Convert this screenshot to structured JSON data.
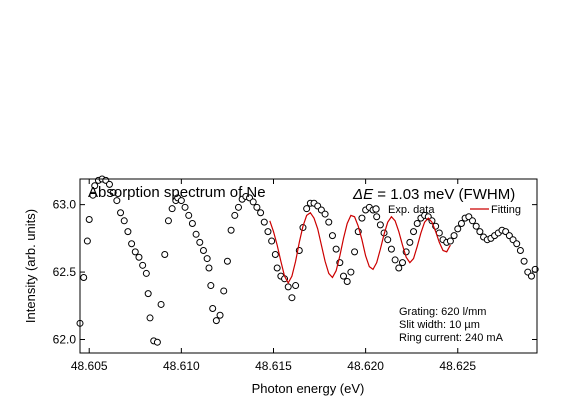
{
  "chart_data": {
    "type": "scatter",
    "title": "",
    "xlabel": "Photon energy (eV)",
    "ylabel": "Intensity (arb. units)",
    "xlim": [
      48.6045,
      48.6293
    ],
    "ylim": [
      61.9,
      63.19
    ],
    "x_ticks": [
      "48.605",
      "48.610",
      "48.615",
      "48.620",
      "48.625"
    ],
    "x_tick_values": [
      48.605,
      48.61,
      48.615,
      48.62,
      48.625
    ],
    "y_ticks": [
      "62.0",
      "62.5",
      "63.0"
    ],
    "y_tick_values": [
      62.0,
      62.5,
      63.0
    ],
    "grid": false,
    "legend_position": "top-right",
    "annotations": {
      "spectrum_title": "Absorption spectrum of Ne",
      "resolution_symbol": "Δ",
      "resolution_variable": "E",
      "resolution_value": " = 1.03 meV (FWHM)",
      "grating": "Grating:  620 l/mm",
      "slit_width": "Slit width: 10 µm",
      "ring_current": "Ring current: 240 mA"
    },
    "series": [
      {
        "name": "Exp. data",
        "marker": "open-circle",
        "color": "#000000",
        "points": [
          [
            48.6045,
            62.12
          ],
          [
            48.6047,
            62.46
          ],
          [
            48.6049,
            62.73
          ],
          [
            48.605,
            62.89
          ],
          [
            48.6052,
            63.07
          ],
          [
            48.6053,
            63.14
          ],
          [
            48.6055,
            63.18
          ],
          [
            48.6057,
            63.19
          ],
          [
            48.6059,
            63.18
          ],
          [
            48.6061,
            63.15
          ],
          [
            48.6063,
            63.09
          ],
          [
            48.6065,
            63.03
          ],
          [
            48.6067,
            62.94
          ],
          [
            48.6069,
            62.88
          ],
          [
            48.6071,
            62.8
          ],
          [
            48.6073,
            62.71
          ],
          [
            48.6075,
            62.65
          ],
          [
            48.6077,
            62.61
          ],
          [
            48.6079,
            62.55
          ],
          [
            48.6081,
            62.49
          ],
          [
            48.6082,
            62.34
          ],
          [
            48.6083,
            62.16
          ],
          [
            48.6085,
            61.99
          ],
          [
            48.6087,
            61.98
          ],
          [
            48.6089,
            62.26
          ],
          [
            48.6091,
            62.63
          ],
          [
            48.6093,
            62.88
          ],
          [
            48.6095,
            62.97
          ],
          [
            48.6097,
            63.03
          ],
          [
            48.6098,
            63.05
          ],
          [
            48.61,
            63.03
          ],
          [
            48.6102,
            62.98
          ],
          [
            48.6104,
            62.92
          ],
          [
            48.6106,
            62.86
          ],
          [
            48.6108,
            62.78
          ],
          [
            48.611,
            62.72
          ],
          [
            48.6112,
            62.66
          ],
          [
            48.6114,
            62.6
          ],
          [
            48.6115,
            62.53
          ],
          [
            48.6116,
            62.4
          ],
          [
            48.6117,
            62.23
          ],
          [
            48.6119,
            62.14
          ],
          [
            48.6121,
            62.18
          ],
          [
            48.6123,
            62.36
          ],
          [
            48.6125,
            62.58
          ],
          [
            48.6127,
            62.81
          ],
          [
            48.6129,
            62.92
          ],
          [
            48.6131,
            62.98
          ],
          [
            48.6133,
            63.04
          ],
          [
            48.6135,
            63.06
          ],
          [
            48.6137,
            63.05
          ],
          [
            48.6139,
            63.02
          ],
          [
            48.6141,
            62.98
          ],
          [
            48.6143,
            62.94
          ],
          [
            48.6145,
            62.87
          ],
          [
            48.6147,
            62.8
          ],
          [
            48.6149,
            62.73
          ],
          [
            48.6151,
            62.63
          ],
          [
            48.6152,
            62.53
          ],
          [
            48.6154,
            62.47
          ],
          [
            48.6156,
            62.45
          ],
          [
            48.6158,
            62.39
          ],
          [
            48.616,
            62.31
          ],
          [
            48.6162,
            62.4
          ],
          [
            48.6164,
            62.66
          ],
          [
            48.6166,
            62.83
          ],
          [
            48.6168,
            62.97
          ],
          [
            48.617,
            63.01
          ],
          [
            48.6172,
            63.01
          ],
          [
            48.6174,
            62.99
          ],
          [
            48.6176,
            62.96
          ],
          [
            48.6178,
            62.93
          ],
          [
            48.618,
            62.87
          ],
          [
            48.6182,
            62.77
          ],
          [
            48.6184,
            62.67
          ],
          [
            48.6186,
            62.57
          ],
          [
            48.6188,
            62.47
          ],
          [
            48.619,
            62.43
          ],
          [
            48.6192,
            62.5
          ],
          [
            48.6194,
            62.65
          ],
          [
            48.6196,
            62.8
          ],
          [
            48.6198,
            62.9
          ],
          [
            48.62,
            62.96
          ],
          [
            48.6202,
            62.98
          ],
          [
            48.6204,
            62.96
          ],
          [
            48.6206,
            62.91
          ],
          [
            48.6208,
            62.85
          ],
          [
            48.621,
            62.79
          ],
          [
            48.6212,
            62.74
          ],
          [
            48.6214,
            62.67
          ],
          [
            48.6216,
            62.59
          ],
          [
            48.6218,
            62.53
          ],
          [
            48.622,
            62.57
          ],
          [
            48.6222,
            62.65
          ],
          [
            48.6224,
            62.72
          ],
          [
            48.6226,
            62.8
          ],
          [
            48.6228,
            62.86
          ],
          [
            48.623,
            62.9
          ],
          [
            48.6232,
            62.92
          ],
          [
            48.6234,
            62.91
          ],
          [
            48.6236,
            62.88
          ],
          [
            48.6238,
            62.84
          ],
          [
            48.624,
            62.79
          ],
          [
            48.6242,
            62.74
          ],
          [
            48.6244,
            62.72
          ],
          [
            48.6246,
            62.73
          ],
          [
            48.6248,
            62.77
          ],
          [
            48.625,
            62.82
          ],
          [
            48.6252,
            62.86
          ],
          [
            48.6254,
            62.9
          ],
          [
            48.6256,
            62.91
          ],
          [
            48.6258,
            62.88
          ],
          [
            48.626,
            62.84
          ],
          [
            48.6262,
            62.8
          ],
          [
            48.6264,
            62.76
          ],
          [
            48.6266,
            62.74
          ],
          [
            48.6268,
            62.75
          ],
          [
            48.627,
            62.77
          ],
          [
            48.6272,
            62.79
          ],
          [
            48.6274,
            62.81
          ],
          [
            48.6276,
            62.8
          ],
          [
            48.6278,
            62.77
          ],
          [
            48.628,
            62.74
          ],
          [
            48.6282,
            62.71
          ],
          [
            48.6284,
            62.66
          ],
          [
            48.6286,
            62.58
          ],
          [
            48.6288,
            62.5
          ],
          [
            48.629,
            62.47
          ],
          [
            48.6292,
            62.52
          ]
        ]
      },
      {
        "name": "Fitting",
        "marker": "line",
        "color": "#cc0000",
        "fit_range": [
          48.6148,
          48.6246
        ],
        "points": [
          [
            48.6148,
            62.88
          ],
          [
            48.615,
            62.8
          ],
          [
            48.6152,
            62.7
          ],
          [
            48.6154,
            62.58
          ],
          [
            48.6156,
            62.47
          ],
          [
            48.6158,
            62.42
          ],
          [
            48.616,
            62.47
          ],
          [
            48.6162,
            62.58
          ],
          [
            48.6164,
            62.72
          ],
          [
            48.6166,
            62.84
          ],
          [
            48.6168,
            62.92
          ],
          [
            48.617,
            62.94
          ],
          [
            48.6172,
            62.9
          ],
          [
            48.6174,
            62.82
          ],
          [
            48.6176,
            62.7
          ],
          [
            48.6178,
            62.58
          ],
          [
            48.618,
            62.49
          ],
          [
            48.6182,
            62.46
          ],
          [
            48.6184,
            62.51
          ],
          [
            48.6186,
            62.62
          ],
          [
            48.6188,
            62.75
          ],
          [
            48.619,
            62.86
          ],
          [
            48.6192,
            62.92
          ],
          [
            48.6194,
            62.91
          ],
          [
            48.6196,
            62.84
          ],
          [
            48.6198,
            62.74
          ],
          [
            48.62,
            62.62
          ],
          [
            48.6202,
            62.54
          ],
          [
            48.6204,
            62.52
          ],
          [
            48.6206,
            62.57
          ],
          [
            48.6208,
            62.67
          ],
          [
            48.621,
            62.78
          ],
          [
            48.6212,
            62.87
          ],
          [
            48.6214,
            62.91
          ],
          [
            48.6216,
            62.88
          ],
          [
            48.6218,
            62.8
          ],
          [
            48.622,
            62.7
          ],
          [
            48.6222,
            62.61
          ],
          [
            48.6224,
            62.57
          ],
          [
            48.6226,
            62.6
          ],
          [
            48.6228,
            62.69
          ],
          [
            48.623,
            62.79
          ],
          [
            48.6232,
            62.87
          ],
          [
            48.6234,
            62.9
          ],
          [
            48.6236,
            62.87
          ],
          [
            48.6238,
            62.8
          ],
          [
            48.624,
            62.72
          ],
          [
            48.6242,
            62.66
          ],
          [
            48.6244,
            62.65
          ],
          [
            48.6246,
            62.7
          ]
        ]
      }
    ]
  }
}
